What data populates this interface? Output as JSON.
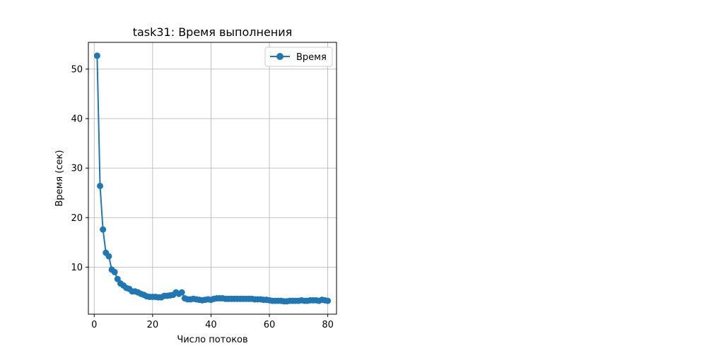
{
  "chart_data": {
    "type": "line",
    "title": "task31: Время выполнения",
    "xlabel": "Число потоков",
    "ylabel": "Время (сек)",
    "xlim": [
      -2,
      83
    ],
    "ylim": [
      0.5,
      55.4
    ],
    "xticks": [
      0,
      20,
      40,
      60,
      80
    ],
    "yticks": [
      10,
      20,
      30,
      40,
      50
    ],
    "grid": true,
    "legend_position": "top-right",
    "marker": "circle",
    "color": "#1f77b4",
    "series": [
      {
        "name": "Время",
        "x": [
          1,
          2,
          3,
          4,
          5,
          6,
          7,
          8,
          9,
          10,
          11,
          12,
          13,
          14,
          15,
          16,
          17,
          18,
          19,
          20,
          21,
          22,
          23,
          24,
          25,
          26,
          27,
          28,
          29,
          30,
          31,
          32,
          33,
          34,
          35,
          36,
          37,
          38,
          39,
          40,
          41,
          42,
          43,
          44,
          45,
          46,
          47,
          48,
          49,
          50,
          51,
          52,
          53,
          54,
          55,
          56,
          57,
          58,
          59,
          60,
          61,
          62,
          63,
          64,
          65,
          66,
          67,
          68,
          69,
          70,
          71,
          72,
          73,
          74,
          75,
          76,
          77,
          78,
          79,
          80
        ],
        "y": [
          52.7,
          26.4,
          17.6,
          12.9,
          12.2,
          9.5,
          9.0,
          7.6,
          6.7,
          6.3,
          5.8,
          5.6,
          5.1,
          5.1,
          4.9,
          4.6,
          4.4,
          4.1,
          4.0,
          4.0,
          4.0,
          3.9,
          3.9,
          4.2,
          4.2,
          4.3,
          4.4,
          4.9,
          4.6,
          4.9,
          3.7,
          3.5,
          3.5,
          3.6,
          3.5,
          3.4,
          3.3,
          3.4,
          3.5,
          3.4,
          3.6,
          3.7,
          3.7,
          3.7,
          3.6,
          3.6,
          3.6,
          3.6,
          3.6,
          3.6,
          3.6,
          3.6,
          3.6,
          3.6,
          3.5,
          3.5,
          3.5,
          3.4,
          3.4,
          3.3,
          3.2,
          3.2,
          3.2,
          3.2,
          3.1,
          3.1,
          3.2,
          3.2,
          3.2,
          3.2,
          3.3,
          3.2,
          3.2,
          3.3,
          3.3,
          3.3,
          3.2,
          3.4,
          3.3,
          3.2
        ]
      }
    ]
  }
}
